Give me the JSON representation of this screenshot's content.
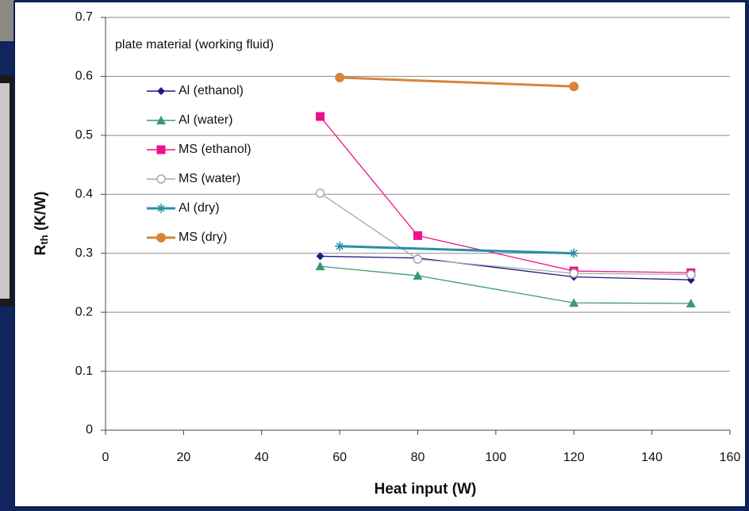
{
  "chart_data": {
    "type": "line",
    "legend_title": "plate material (working fluid)",
    "x_label": "Heat input (W)",
    "y_label": {
      "main": "R",
      "sub": "th",
      "rest": " (K/W)"
    },
    "xlim": [
      0,
      160
    ],
    "xticks": [
      0,
      20,
      40,
      60,
      80,
      100,
      120,
      140,
      160
    ],
    "ylim": [
      0,
      0.7
    ],
    "yticks": [
      0,
      0.1,
      0.2,
      0.3,
      0.4,
      0.5,
      0.6,
      0.7
    ],
    "grid": true,
    "legend": "upper left",
    "series": [
      {
        "name": "Al (ethanol)",
        "color": "#1c1c80",
        "marker": "diamond",
        "x": [
          55,
          80,
          120,
          150
        ],
        "values": [
          0.295,
          0.292,
          0.26,
          0.255
        ]
      },
      {
        "name": "Al (water)",
        "color": "#3a9a78",
        "marker": "triangle",
        "x": [
          55,
          80,
          120,
          150
        ],
        "values": [
          0.278,
          0.262,
          0.216,
          0.215
        ]
      },
      {
        "name": "MS (ethanol)",
        "color": "#f0108a",
        "marker": "square",
        "x": [
          55,
          80,
          120,
          150
        ],
        "values": [
          0.532,
          0.33,
          0.27,
          0.267
        ]
      },
      {
        "name": "MS (water)",
        "color": "#a8a8a8",
        "marker": "circle-open",
        "x": [
          55,
          80,
          120,
          150
        ],
        "values": [
          0.402,
          0.29,
          0.266,
          0.264
        ]
      },
      {
        "name": "Al (dry)",
        "color": "#2a8fa6",
        "marker": "star",
        "x": [
          60,
          120
        ],
        "values": [
          0.312,
          0.3
        ]
      },
      {
        "name": "MS (dry)",
        "color": "#d9843a",
        "marker": "circle",
        "x": [
          60,
          120
        ],
        "values": [
          0.598,
          0.583
        ]
      }
    ]
  }
}
